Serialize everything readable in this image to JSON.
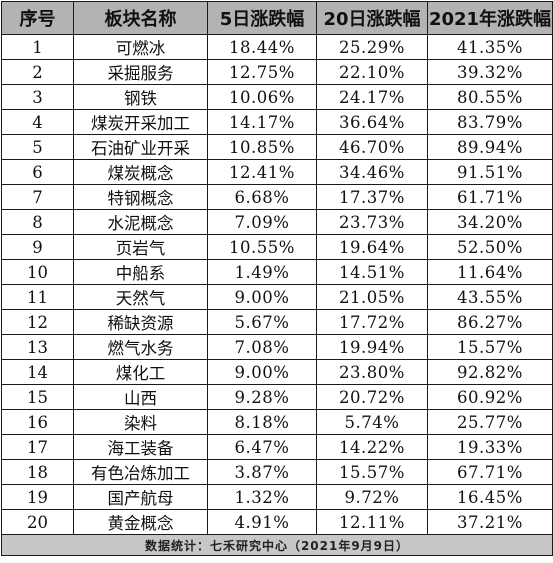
{
  "table": {
    "headers": [
      "序号",
      "板块名称",
      "5日涨跌幅",
      "20日涨跌幅",
      "2021年涨跌幅"
    ],
    "rows": [
      [
        "1",
        "可燃冰",
        "18.44%",
        "25.29%",
        "41.35%"
      ],
      [
        "2",
        "采掘服务",
        "12.75%",
        "22.10%",
        "39.32%"
      ],
      [
        "3",
        "钢铁",
        "10.06%",
        "24.17%",
        "80.55%"
      ],
      [
        "4",
        "煤炭开采加工",
        "14.17%",
        "36.64%",
        "83.79%"
      ],
      [
        "5",
        "石油矿业开采",
        "10.85%",
        "46.70%",
        "89.94%"
      ],
      [
        "6",
        "煤炭概念",
        "12.41%",
        "34.46%",
        "91.51%"
      ],
      [
        "7",
        "特钢概念",
        "6.68%",
        "17.37%",
        "61.71%"
      ],
      [
        "8",
        "水泥概念",
        "7.09%",
        "23.73%",
        "34.20%"
      ],
      [
        "9",
        "页岩气",
        "10.55%",
        "19.64%",
        "52.50%"
      ],
      [
        "10",
        "中船系",
        "1.49%",
        "14.51%",
        "11.64%"
      ],
      [
        "11",
        "天然气",
        "9.00%",
        "21.05%",
        "43.55%"
      ],
      [
        "12",
        "稀缺资源",
        "5.67%",
        "17.72%",
        "86.27%"
      ],
      [
        "13",
        "燃气水务",
        "7.08%",
        "19.94%",
        "15.57%"
      ],
      [
        "14",
        "煤化工",
        "9.00%",
        "23.80%",
        "92.82%"
      ],
      [
        "15",
        "山西",
        "9.28%",
        "20.72%",
        "60.92%"
      ],
      [
        "16",
        "染料",
        "8.18%",
        "5.74%",
        "25.77%"
      ],
      [
        "17",
        "海工装备",
        "6.47%",
        "14.22%",
        "19.33%"
      ],
      [
        "18",
        "有色冶炼加工",
        "3.87%",
        "15.57%",
        "67.71%"
      ],
      [
        "19",
        "国产航母",
        "1.32%",
        "9.72%",
        "16.45%"
      ],
      [
        "20",
        "黄金概念",
        "4.91%",
        "12.11%",
        "37.21%"
      ]
    ],
    "footer": "数据统计：七禾研究中心（2021年9月9日）"
  },
  "colors": {
    "header_bg": "#b3b3b3",
    "footer_bg": "#c7c7c7",
    "border": "#1a1a1a"
  }
}
